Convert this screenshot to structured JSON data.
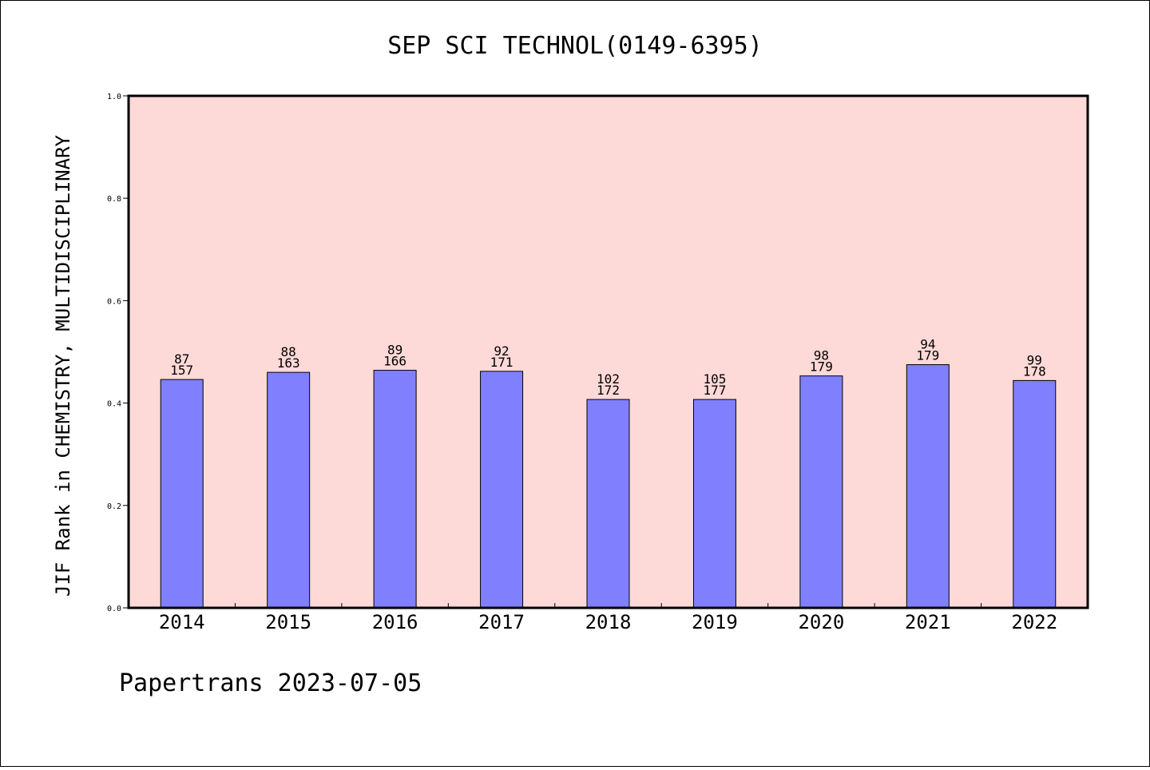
{
  "chart_data": {
    "type": "bar",
    "title": "SEP SCI TECHNOL(0149-6395)",
    "xlabel": "",
    "ylabel": "JIF Rank in CHEMISTRY, MULTIDISCIPLINARY",
    "ylim": [
      0,
      1.0
    ],
    "yticks": [
      "0.0",
      "0.2",
      "0.4",
      "0.6",
      "0.8",
      "1.0"
    ],
    "categories": [
      "2014",
      "2015",
      "2016",
      "2017",
      "2018",
      "2019",
      "2020",
      "2021",
      "2022"
    ],
    "values": [
      0.446,
      0.46,
      0.464,
      0.462,
      0.407,
      0.407,
      0.453,
      0.475,
      0.444
    ],
    "rank": [
      87,
      88,
      89,
      92,
      102,
      105,
      98,
      94,
      99
    ],
    "total": [
      157,
      163,
      166,
      171,
      172,
      177,
      179,
      179,
      178
    ],
    "grid": false,
    "colors": {
      "background": "#fdd9d7",
      "bar": "#8080ff",
      "bar_edge": "#000000"
    }
  },
  "footer": {
    "text": "Papertrans 2023-07-05"
  }
}
